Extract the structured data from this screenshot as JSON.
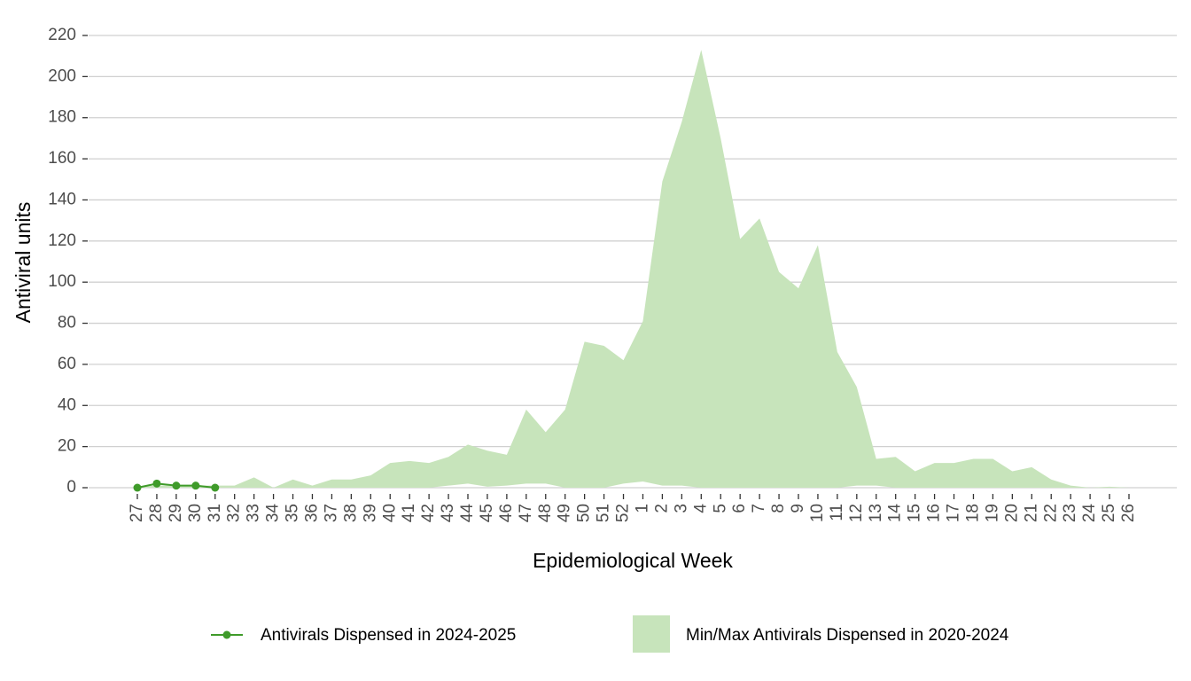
{
  "chart_data": {
    "type": "line",
    "x_label": "Epidemiological Week",
    "y_label": "Antiviral units",
    "categories": [
      "27",
      "28",
      "29",
      "30",
      "31",
      "32",
      "33",
      "34",
      "35",
      "36",
      "37",
      "38",
      "39",
      "40",
      "41",
      "42",
      "43",
      "44",
      "45",
      "46",
      "47",
      "48",
      "49",
      "50",
      "51",
      "52",
      "1",
      "2",
      "3",
      "4",
      "5",
      "6",
      "7",
      "8",
      "9",
      "10",
      "11",
      "12",
      "13",
      "14",
      "15",
      "16",
      "17",
      "18",
      "19",
      "20",
      "21",
      "22",
      "23",
      "24",
      "25",
      "26"
    ],
    "ylim": [
      0,
      220
    ],
    "yticks": [
      0,
      20,
      40,
      60,
      80,
      100,
      120,
      140,
      160,
      180,
      200,
      220
    ],
    "grid": true,
    "legend": "bottom",
    "series": [
      {
        "name": "Antivirals Dispensed in 2024-2025",
        "color": "#3f9b2a",
        "values": [
          0,
          2,
          1,
          1,
          0,
          null,
          null,
          null,
          null,
          null,
          null,
          null,
          null,
          null,
          null,
          null,
          null,
          null,
          null,
          null,
          null,
          null,
          null,
          null,
          null,
          null,
          null,
          null,
          null,
          null,
          null,
          null,
          null,
          null,
          null,
          null,
          null,
          null,
          null,
          null,
          null,
          null,
          null,
          null,
          null,
          null,
          null,
          null,
          null,
          null,
          null,
          null
        ]
      },
      {
        "name": "Min/Max Antivirals Dispensed in 2020-2024",
        "color": "#c7e4bb",
        "type": "ribbon",
        "max": [
          0.5,
          1,
          1,
          1,
          1,
          1,
          5,
          0,
          4,
          1,
          4,
          4,
          6,
          12,
          13,
          12,
          15,
          21,
          18,
          16,
          38,
          27,
          38,
          71,
          69,
          62,
          81,
          149,
          178,
          213,
          170,
          121,
          131,
          105,
          97,
          118,
          66,
          49,
          14,
          15,
          8,
          12,
          12,
          14,
          14,
          8,
          10,
          4,
          1,
          0,
          0.5,
          0
        ],
        "min": [
          0,
          0,
          0,
          0,
          0,
          0,
          0,
          0,
          0,
          0,
          0,
          0,
          0,
          0,
          0,
          0,
          1,
          2,
          0.5,
          1,
          2,
          2,
          0,
          0,
          0,
          2,
          3,
          1,
          1,
          0,
          0,
          0,
          0,
          0,
          0,
          0,
          0,
          1,
          1,
          0,
          0,
          0,
          0,
          0,
          0,
          0,
          0,
          0,
          0,
          0,
          0,
          0
        ]
      }
    ]
  }
}
